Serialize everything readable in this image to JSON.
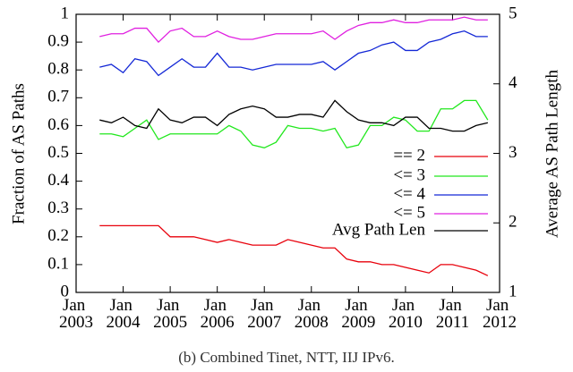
{
  "chart_data": {
    "type": "line",
    "caption": "(b) Combined Tinet, NTT, IIJ IPv6.",
    "ylabel": "Fraction of AS Paths",
    "y2label": "Average AS Path Length",
    "x": [
      "2003-07",
      "2003-10",
      "2004-01",
      "2004-04",
      "2004-07",
      "2004-10",
      "2005-01",
      "2005-04",
      "2005-07",
      "2005-10",
      "2006-01",
      "2006-04",
      "2006-07",
      "2006-10",
      "2007-01",
      "2007-04",
      "2007-07",
      "2007-10",
      "2008-01",
      "2008-04",
      "2008-07",
      "2008-10",
      "2009-01",
      "2009-04",
      "2009-07",
      "2009-10",
      "2010-01",
      "2010-04",
      "2010-07",
      "2010-10",
      "2011-01",
      "2011-04",
      "2011-07",
      "2011-10"
    ],
    "xlim": [
      "2003-01",
      "2012-01"
    ],
    "xticks": [
      {
        "value": "2003-01",
        "label": "Jan 2003"
      },
      {
        "value": "2004-01",
        "label": "Jan 2004"
      },
      {
        "value": "2005-01",
        "label": "Jan 2005"
      },
      {
        "value": "2006-01",
        "label": "Jan 2006"
      },
      {
        "value": "2007-01",
        "label": "Jan 2007"
      },
      {
        "value": "2008-01",
        "label": "Jan 2008"
      },
      {
        "value": "2009-01",
        "label": "Jan 2009"
      },
      {
        "value": "2010-01",
        "label": "Jan 2010"
      },
      {
        "value": "2011-01",
        "label": "Jan 2011"
      },
      {
        "value": "2012-01",
        "label": "Jan 2012"
      }
    ],
    "ylim": [
      0,
      1
    ],
    "yticks": [
      0,
      0.1,
      0.2,
      0.3,
      0.4,
      0.5,
      0.6,
      0.7,
      0.8,
      0.9,
      1
    ],
    "y2lim": [
      1,
      5
    ],
    "y2ticks": [
      1,
      2,
      3,
      4,
      5
    ],
    "legend": "right",
    "series": [
      {
        "name": "== 2",
        "color": "#e8000b",
        "values": [
          0.24,
          0.24,
          0.24,
          0.24,
          0.24,
          0.24,
          0.2,
          0.2,
          0.2,
          0.19,
          0.18,
          0.19,
          0.18,
          0.17,
          0.17,
          0.17,
          0.19,
          0.18,
          0.17,
          0.16,
          0.16,
          0.12,
          0.11,
          0.11,
          0.1,
          0.1,
          0.09,
          0.08,
          0.07,
          0.1,
          0.1,
          0.09,
          0.08,
          0.06
        ]
      },
      {
        "name": "<= 3",
        "color": "#22e81e",
        "values": [
          0.57,
          0.57,
          0.56,
          0.59,
          0.62,
          0.55,
          0.57,
          0.57,
          0.57,
          0.57,
          0.57,
          0.6,
          0.58,
          0.53,
          0.52,
          0.54,
          0.6,
          0.59,
          0.59,
          0.58,
          0.59,
          0.52,
          0.53,
          0.6,
          0.6,
          0.63,
          0.62,
          0.58,
          0.58,
          0.66,
          0.66,
          0.69,
          0.69,
          0.62
        ]
      },
      {
        "name": "<= 4",
        "color": "#1428d6",
        "values": [
          0.81,
          0.82,
          0.79,
          0.84,
          0.83,
          0.78,
          0.81,
          0.84,
          0.81,
          0.81,
          0.86,
          0.81,
          0.81,
          0.8,
          0.81,
          0.82,
          0.82,
          0.82,
          0.82,
          0.83,
          0.8,
          0.83,
          0.86,
          0.87,
          0.89,
          0.9,
          0.87,
          0.87,
          0.9,
          0.91,
          0.93,
          0.94,
          0.92,
          0.92
        ]
      },
      {
        "name": "<= 5",
        "color": "#e020e0",
        "values": [
          0.92,
          0.93,
          0.93,
          0.95,
          0.95,
          0.9,
          0.94,
          0.95,
          0.92,
          0.92,
          0.94,
          0.92,
          0.91,
          0.91,
          0.92,
          0.93,
          0.93,
          0.93,
          0.93,
          0.94,
          0.91,
          0.94,
          0.96,
          0.97,
          0.97,
          0.98,
          0.97,
          0.97,
          0.98,
          0.98,
          0.98,
          0.99,
          0.98,
          0.98
        ]
      },
      {
        "name": "Avg Path Len",
        "color": "#000000",
        "axis": "y2",
        "values": [
          3.48,
          3.44,
          3.52,
          3.4,
          3.36,
          3.64,
          3.48,
          3.44,
          3.52,
          3.52,
          3.4,
          3.56,
          3.64,
          3.68,
          3.64,
          3.52,
          3.52,
          3.56,
          3.56,
          3.52,
          3.76,
          3.6,
          3.48,
          3.44,
          3.44,
          3.4,
          3.52,
          3.52,
          3.36,
          3.36,
          3.32,
          3.32,
          3.4,
          3.44
        ]
      }
    ]
  }
}
